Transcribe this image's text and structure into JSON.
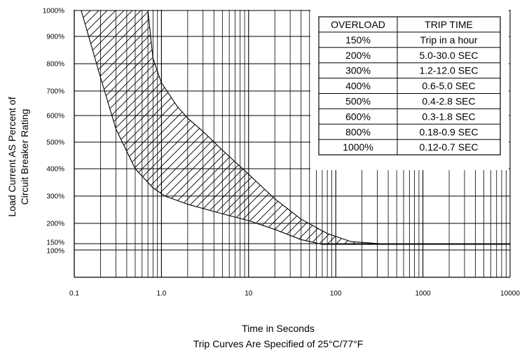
{
  "chart_data": {
    "type": "area",
    "xscale": "log",
    "xlim": [
      0.1,
      10000
    ],
    "ylim": [
      0,
      1000
    ],
    "x_ticks": [
      "0.1",
      "1.0",
      "10",
      "100",
      "1000",
      "10000"
    ],
    "y_ticks": [
      {
        "value": 1000,
        "label": "1000%"
      },
      {
        "value": 900,
        "label": "900%"
      },
      {
        "value": 800,
        "label": "800%"
      },
      {
        "value": 700,
        "label": "700%"
      },
      {
        "value": 600,
        "label": "600%"
      },
      {
        "value": 500,
        "label": "500%"
      },
      {
        "value": 400,
        "label": "400%"
      },
      {
        "value": 300,
        "label": "300%"
      },
      {
        "value": 200,
        "label": "200%"
      },
      {
        "value": 150,
        "label": "150%"
      },
      {
        "value": 100,
        "label": "100%"
      }
    ],
    "ylabel_line1": "Load Current AS Percent of",
    "ylabel_line2": "Circuit Breaker Rating",
    "xlabel": "Time in Seconds",
    "subtitle": "Trip Curves Are Specified of 25°C/77°F",
    "grid": true,
    "series": [
      {
        "points": [
          [
            0.12,
            1000
          ],
          [
            0.2,
            750
          ],
          [
            0.3,
            550
          ],
          [
            0.5,
            400
          ],
          [
            0.8,
            330
          ],
          [
            1.1,
            300
          ],
          [
            2,
            270
          ],
          [
            5,
            235
          ],
          [
            10,
            210
          ],
          [
            20,
            185
          ],
          [
            40,
            160
          ],
          [
            70,
            145
          ],
          [
            100,
            145
          ],
          [
            1000,
            145
          ],
          [
            10000,
            145
          ]
        ]
      },
      {
        "points": [
          [
            0.7,
            1000
          ],
          [
            0.8,
            820
          ],
          [
            1.0,
            730
          ],
          [
            1.5,
            640
          ],
          [
            2,
            590
          ],
          [
            3,
            540
          ],
          [
            5,
            470
          ],
          [
            10,
            380
          ],
          [
            20,
            290
          ],
          [
            40,
            215
          ],
          [
            80,
            175
          ],
          [
            150,
            155
          ],
          [
            400,
            145
          ],
          [
            1000,
            145
          ],
          [
            10000,
            145
          ]
        ]
      }
    ],
    "table": {
      "headers": [
        "OVERLOAD",
        "TRIP TIME"
      ],
      "rows": [
        [
          "150%",
          "Trip in a hour"
        ],
        [
          "200%",
          "5.0-30.0 SEC"
        ],
        [
          "300%",
          "1.2-12.0 SEC"
        ],
        [
          "400%",
          "0.6-5.0 SEC"
        ],
        [
          "500%",
          "0.4-2.8 SEC"
        ],
        [
          "600%",
          "0.3-1.8 SEC"
        ],
        [
          "800%",
          "0.18-0.9 SEC"
        ],
        [
          "1000%",
          "0.12-0.7 SEC"
        ]
      ]
    }
  }
}
